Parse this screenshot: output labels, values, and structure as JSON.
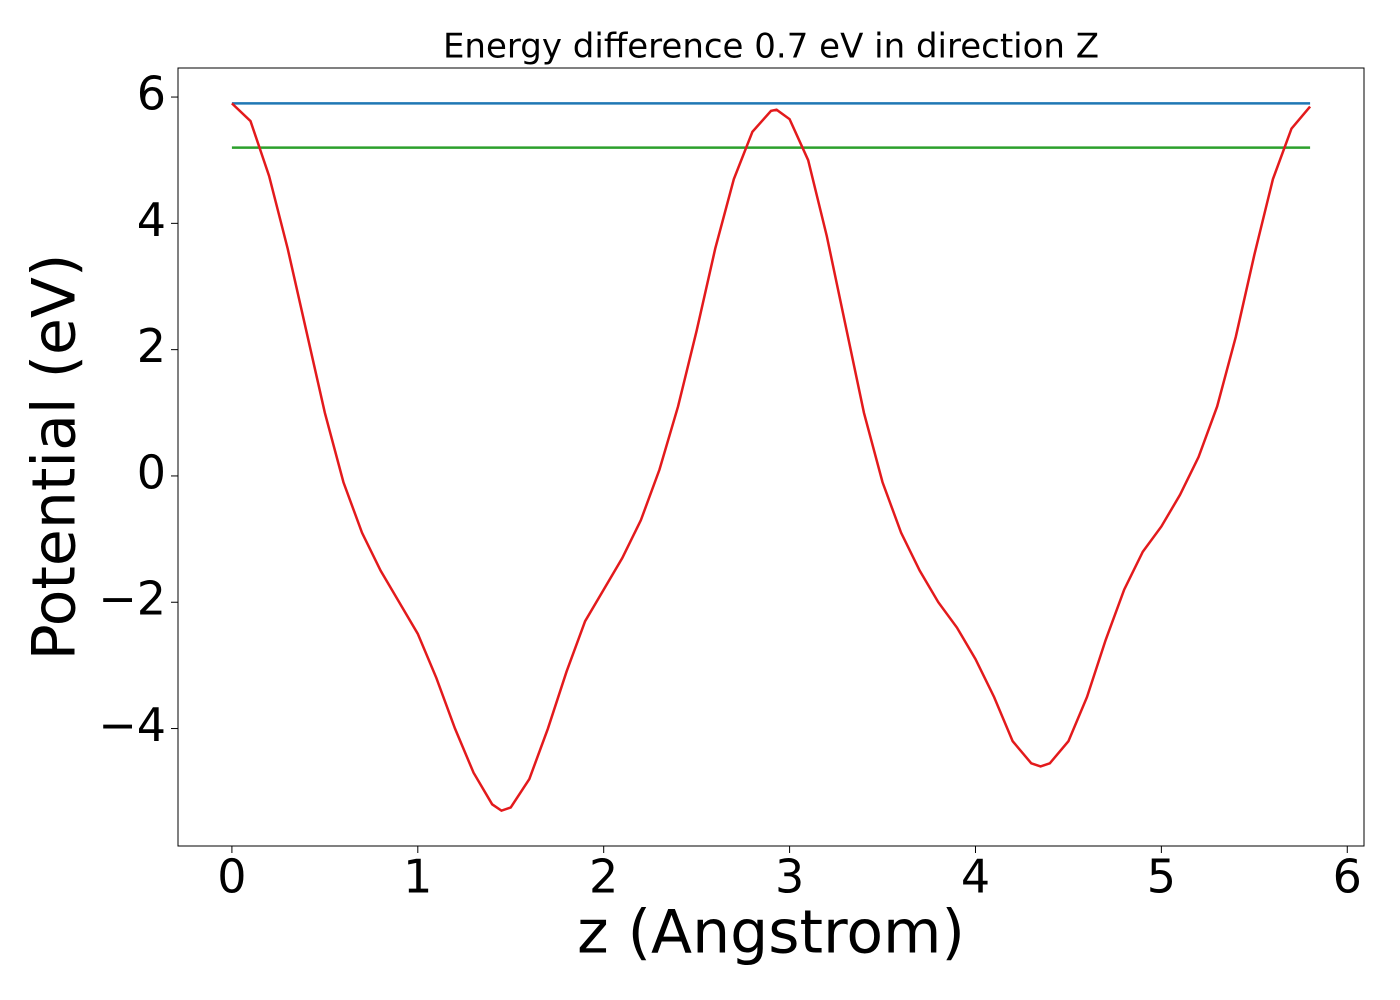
{
  "chart_data": {
    "type": "line",
    "title": "Energy difference 0.7 eV in direction Z",
    "xlabel": "z (Angstrom)",
    "ylabel": "Potential (eV)",
    "xlim": [
      -0.29,
      6.09
    ],
    "ylim": [
      -5.86,
      6.46
    ],
    "xticks": [
      0,
      1,
      2,
      3,
      4,
      5,
      6
    ],
    "yticks": [
      {
        "value": -4,
        "label": "−4"
      },
      {
        "value": -2,
        "label": "−2"
      },
      0,
      2,
      4,
      6
    ],
    "series": [
      {
        "color": "#1f77b4",
        "x": [
          0,
          5.8
        ],
        "values": [
          5.9,
          5.9
        ]
      },
      {
        "color": "#2ca02c",
        "x": [
          0,
          5.8
        ],
        "values": [
          5.2,
          5.2
        ]
      },
      {
        "color": "#e31a1c",
        "x": [
          0,
          0.1,
          0.2,
          0.3,
          0.4,
          0.5,
          0.6,
          0.7,
          0.8,
          0.9,
          1.0,
          1.1,
          1.2,
          1.3,
          1.4,
          1.45,
          1.5,
          1.6,
          1.7,
          1.8,
          1.9,
          2.0,
          2.1,
          2.2,
          2.3,
          2.4,
          2.5,
          2.6,
          2.7,
          2.8,
          2.9,
          2.93,
          3.0,
          3.1,
          3.2,
          3.3,
          3.4,
          3.5,
          3.6,
          3.7,
          3.8,
          3.9,
          4.0,
          4.1,
          4.2,
          4.3,
          4.35,
          4.4,
          4.5,
          4.6,
          4.7,
          4.8,
          4.9,
          5.0,
          5.1,
          5.2,
          5.3,
          5.4,
          5.5,
          5.6,
          5.7,
          5.8
        ],
        "values": [
          5.9,
          5.62,
          4.75,
          3.6,
          2.3,
          1.0,
          -0.1,
          -0.9,
          -1.5,
          -2.0,
          -2.5,
          -3.2,
          -4.0,
          -4.7,
          -5.2,
          -5.3,
          -5.25,
          -4.8,
          -4.0,
          -3.1,
          -2.3,
          -1.8,
          -1.3,
          -0.7,
          0.1,
          1.1,
          2.3,
          3.6,
          4.7,
          5.45,
          5.78,
          5.8,
          5.65,
          5.0,
          3.8,
          2.4,
          1.0,
          -0.1,
          -0.9,
          -1.5,
          -2.0,
          -2.4,
          -2.9,
          -3.5,
          -4.2,
          -4.55,
          -4.6,
          -4.55,
          -4.2,
          -3.5,
          -2.6,
          -1.8,
          -1.2,
          -0.8,
          -0.3,
          0.3,
          1.1,
          2.2,
          3.5,
          4.7,
          5.5,
          5.85
        ]
      }
    ]
  }
}
